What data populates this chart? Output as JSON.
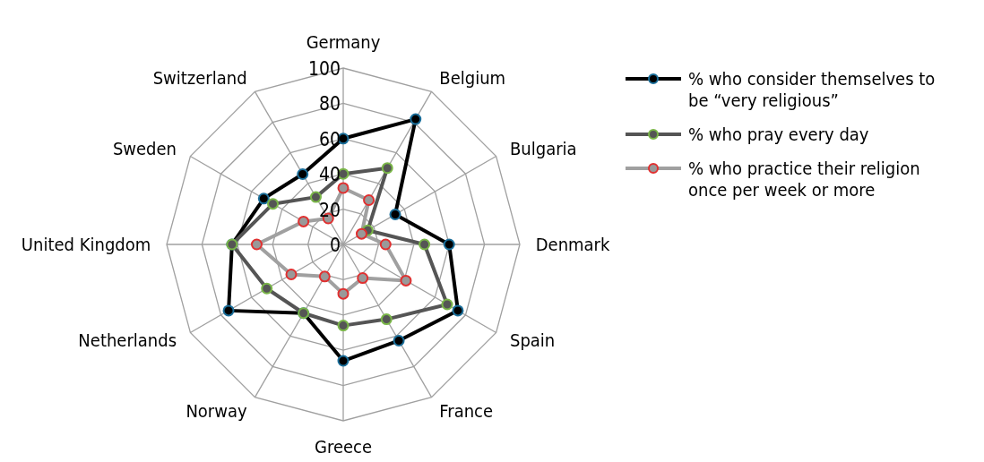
{
  "chart_data": {
    "type": "radar",
    "categories": [
      "Germany",
      "Belgium",
      "Bulgaria",
      "Denmark",
      "Spain",
      "France",
      "Greece",
      "Norway",
      "Netherlands",
      "United Kingdom",
      "Sweden",
      "Switzerland"
    ],
    "ylim": [
      0,
      100
    ],
    "yticks": [
      0,
      20,
      40,
      60,
      80,
      100
    ],
    "grid": true,
    "legend": "right",
    "marker": "circle",
    "line_style": "solid",
    "series": [
      {
        "name": "% who consider themselves to be “very religious”",
        "color": "#000000",
        "values": [
          60,
          82,
          34,
          60,
          75,
          63,
          66,
          45,
          75,
          63,
          52,
          46
        ]
      },
      {
        "name": "% who pray every day",
        "color": "#555555",
        "values": [
          40,
          50,
          16,
          46,
          68,
          49,
          46,
          45,
          50,
          63,
          46,
          31
        ]
      },
      {
        "name": "% who practice their religion once per week or more",
        "color": "#a0a0a0",
        "values": [
          32,
          29,
          12,
          24,
          41,
          22,
          28,
          21,
          34,
          49,
          26,
          17
        ]
      }
    ]
  }
}
